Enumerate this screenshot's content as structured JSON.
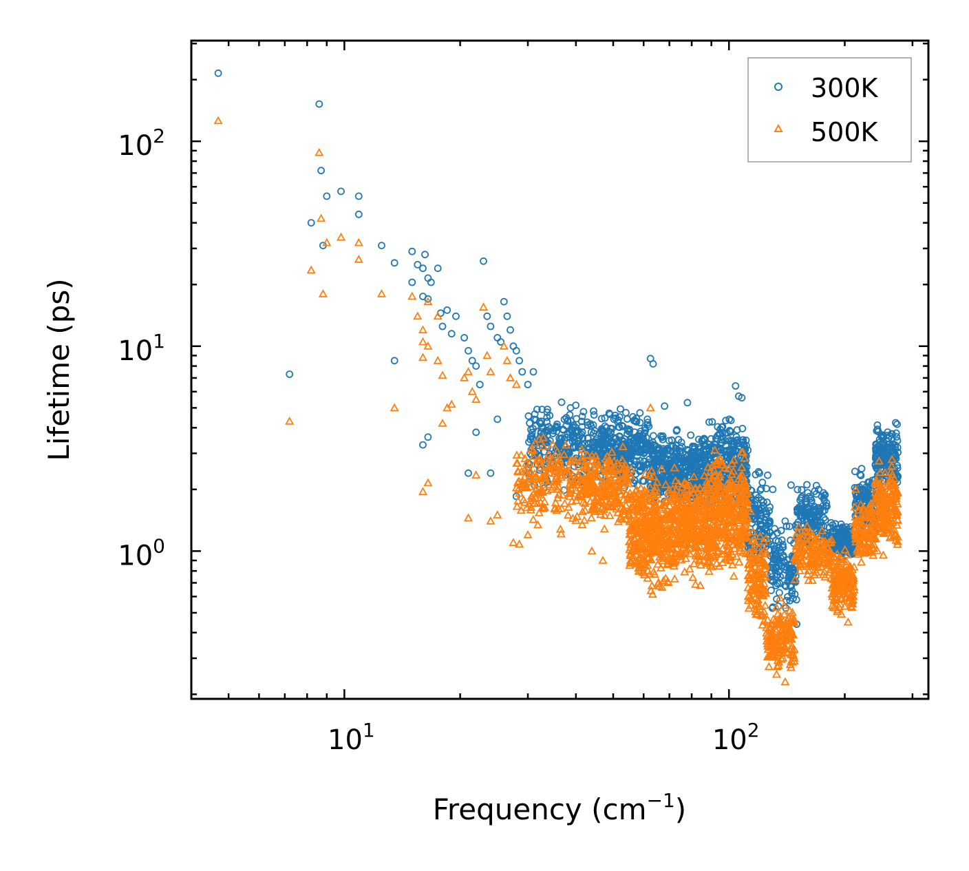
{
  "chart_data": {
    "type": "scatter",
    "xscale": "log",
    "yscale": "log",
    "xlim": [
      4.0,
      330
    ],
    "ylim": [
      0.19,
      310
    ],
    "xlabel": "Frequency (cm",
    "xlabel_sup": "−1",
    "xlabel_end": ")",
    "ylabel": "Lifetime (ps)",
    "x_ticks": [
      {
        "base": "10",
        "exp": "1",
        "value": 10
      },
      {
        "base": "10",
        "exp": "2",
        "value": 100
      }
    ],
    "y_ticks": [
      {
        "base": "10",
        "exp": "0",
        "value": 1
      },
      {
        "base": "10",
        "exp": "1",
        "value": 10
      },
      {
        "base": "10",
        "exp": "2",
        "value": 100
      }
    ],
    "legend": {
      "location": "upper right",
      "entries": [
        "300K",
        "500K"
      ]
    },
    "series": [
      {
        "name": "300K",
        "marker": "circle",
        "color": "#1f77b4",
        "points": [
          [
            4.7,
            215
          ],
          [
            8.6,
            152
          ],
          [
            8.7,
            72
          ],
          [
            9.0,
            54
          ],
          [
            9.8,
            57
          ],
          [
            10.9,
            54
          ],
          [
            10.9,
            44
          ],
          [
            8.2,
            40
          ],
          [
            8.8,
            31
          ],
          [
            7.2,
            7.3
          ],
          [
            12.5,
            31
          ],
          [
            13.5,
            25.5
          ],
          [
            15.0,
            29
          ],
          [
            15.0,
            20.5
          ],
          [
            15.5,
            25
          ],
          [
            16.0,
            24
          ],
          [
            16.2,
            28
          ],
          [
            16.5,
            21.5
          ],
          [
            16.8,
            20.5
          ],
          [
            17.5,
            24
          ],
          [
            16.0,
            17.5
          ],
          [
            16.5,
            17
          ],
          [
            17.8,
            14.5
          ],
          [
            18.5,
            15
          ],
          [
            19.5,
            14
          ],
          [
            18.0,
            12.5
          ],
          [
            19.0,
            11.5
          ],
          [
            20.5,
            11
          ],
          [
            21.0,
            9.5
          ],
          [
            21.5,
            8.5
          ],
          [
            22.0,
            8
          ],
          [
            22.5,
            6.5
          ],
          [
            23.0,
            26
          ],
          [
            23.5,
            14
          ],
          [
            24.0,
            12.5
          ],
          [
            25.0,
            11
          ],
          [
            25.5,
            10.5
          ],
          [
            26.0,
            16.5
          ],
          [
            26.5,
            14
          ],
          [
            27.0,
            12
          ],
          [
            27.5,
            10
          ],
          [
            28.0,
            9.5
          ],
          [
            28.5,
            8.5
          ],
          [
            29.0,
            7.5
          ],
          [
            30.0,
            6.5
          ],
          [
            31.0,
            7.5
          ],
          [
            13.5,
            8.5
          ],
          [
            16.0,
            3.3
          ],
          [
            16.5,
            3.6
          ],
          [
            21.0,
            2.4
          ],
          [
            22.0,
            3.8
          ],
          [
            24.0,
            2.4
          ],
          [
            25.0,
            4.4
          ],
          [
            28.0,
            1.85
          ],
          [
            62.5,
            8.7
          ],
          [
            63.5,
            8.2
          ],
          [
            68.0,
            5.1
          ],
          [
            78.0,
            5.3
          ],
          [
            104,
            6.4
          ],
          [
            106,
            5.7
          ],
          [
            108,
            5.6
          ],
          [
            120,
            2.4
          ],
          [
            130,
            2.0
          ],
          [
            140,
            1.4
          ],
          [
            145,
            2.1
          ],
          [
            150,
            0.44
          ],
          [
            215,
            1.5
          ]
        ],
        "bands": [
          {
            "xmin": 30,
            "xmax": 45,
            "ylo": 1.8,
            "yhi": 6.0,
            "count": 260
          },
          {
            "xmin": 45,
            "xmax": 62,
            "ylo": 1.9,
            "yhi": 5.3,
            "count": 300
          },
          {
            "xmin": 62,
            "xmax": 85,
            "ylo": 1.4,
            "yhi": 4.2,
            "count": 380
          },
          {
            "xmin": 85,
            "xmax": 112,
            "ylo": 1.3,
            "yhi": 5.2,
            "count": 360
          },
          {
            "xmin": 112,
            "xmax": 128,
            "ylo": 0.7,
            "yhi": 2.8,
            "count": 120
          },
          {
            "xmin": 128,
            "xmax": 150,
            "ylo": 0.45,
            "yhi": 1.5,
            "count": 120
          },
          {
            "xmin": 150,
            "xmax": 180,
            "ylo": 0.9,
            "yhi": 2.4,
            "count": 140
          },
          {
            "xmin": 180,
            "xmax": 212,
            "ylo": 0.85,
            "yhi": 1.5,
            "count": 150
          },
          {
            "xmin": 212,
            "xmax": 240,
            "ylo": 1.0,
            "yhi": 2.7,
            "count": 120
          },
          {
            "xmin": 240,
            "xmax": 275,
            "ylo": 1.8,
            "yhi": 4.6,
            "count": 170
          }
        ]
      },
      {
        "name": "500K",
        "marker": "triangle",
        "color": "#ff7f0e",
        "points": [
          [
            4.7,
            126
          ],
          [
            8.6,
            88
          ],
          [
            8.7,
            42
          ],
          [
            9.0,
            32
          ],
          [
            9.8,
            34
          ],
          [
            10.9,
            32
          ],
          [
            10.9,
            26.5
          ],
          [
            8.2,
            23.5
          ],
          [
            8.8,
            18
          ],
          [
            7.2,
            4.3
          ],
          [
            12.5,
            18
          ],
          [
            13.5,
            5.0
          ],
          [
            15.0,
            17.5
          ],
          [
            15.5,
            14
          ],
          [
            16.0,
            12
          ],
          [
            16.5,
            16.5
          ],
          [
            17.5,
            14
          ],
          [
            16.0,
            10.5
          ],
          [
            16.5,
            10
          ],
          [
            16.0,
            8.8
          ],
          [
            17.5,
            8.5
          ],
          [
            18.0,
            7.2
          ],
          [
            18.0,
            4.2
          ],
          [
            18.5,
            5.0
          ],
          [
            19.0,
            5.2
          ],
          [
            20.5,
            7.0
          ],
          [
            21.0,
            7.5
          ],
          [
            21.5,
            6.0
          ],
          [
            22.0,
            5.5
          ],
          [
            23.0,
            15.5
          ],
          [
            23.5,
            9
          ],
          [
            24.0,
            7.5
          ],
          [
            26.0,
            10
          ],
          [
            26.5,
            8.5
          ],
          [
            27.0,
            7
          ],
          [
            28.0,
            6.5
          ],
          [
            22.0,
            2.35
          ],
          [
            21.0,
            1.45
          ],
          [
            24.0,
            1.4
          ],
          [
            25.0,
            1.5
          ],
          [
            16.0,
            1.95
          ],
          [
            16.5,
            2.15
          ],
          [
            27.5,
            1.1
          ],
          [
            28.5,
            1.08
          ],
          [
            30.0,
            1.2
          ],
          [
            44.0,
            1.0
          ],
          [
            47.0,
            0.9
          ],
          [
            62.5,
            5.0
          ],
          [
            140,
            0.23
          ],
          [
            145,
            0.27
          ],
          [
            133,
            0.25
          ],
          [
            204,
            0.45
          ],
          [
            206,
            0.6
          ]
        ],
        "bands": [
          {
            "xmin": 28,
            "xmax": 42,
            "ylo": 1.1,
            "yhi": 4.3,
            "count": 200
          },
          {
            "xmin": 42,
            "xmax": 55,
            "ylo": 1.15,
            "yhi": 3.6,
            "count": 220
          },
          {
            "xmin": 55,
            "xmax": 72,
            "ylo": 0.55,
            "yhi": 2.8,
            "count": 420
          },
          {
            "xmin": 72,
            "xmax": 90,
            "ylo": 0.65,
            "yhi": 2.8,
            "count": 340
          },
          {
            "xmin": 90,
            "xmax": 112,
            "ylo": 0.65,
            "yhi": 3.6,
            "count": 360
          },
          {
            "xmin": 112,
            "xmax": 125,
            "ylo": 0.35,
            "yhi": 1.6,
            "count": 140
          },
          {
            "xmin": 125,
            "xmax": 148,
            "ylo": 0.24,
            "yhi": 0.6,
            "count": 160
          },
          {
            "xmin": 148,
            "xmax": 185,
            "ylo": 0.65,
            "yhi": 1.5,
            "count": 150
          },
          {
            "xmin": 185,
            "xmax": 212,
            "ylo": 0.45,
            "yhi": 1.1,
            "count": 150
          },
          {
            "xmin": 212,
            "xmax": 240,
            "ylo": 0.8,
            "yhi": 2.1,
            "count": 120
          },
          {
            "xmin": 240,
            "xmax": 275,
            "ylo": 0.85,
            "yhi": 3.0,
            "count": 180
          }
        ]
      }
    ]
  }
}
